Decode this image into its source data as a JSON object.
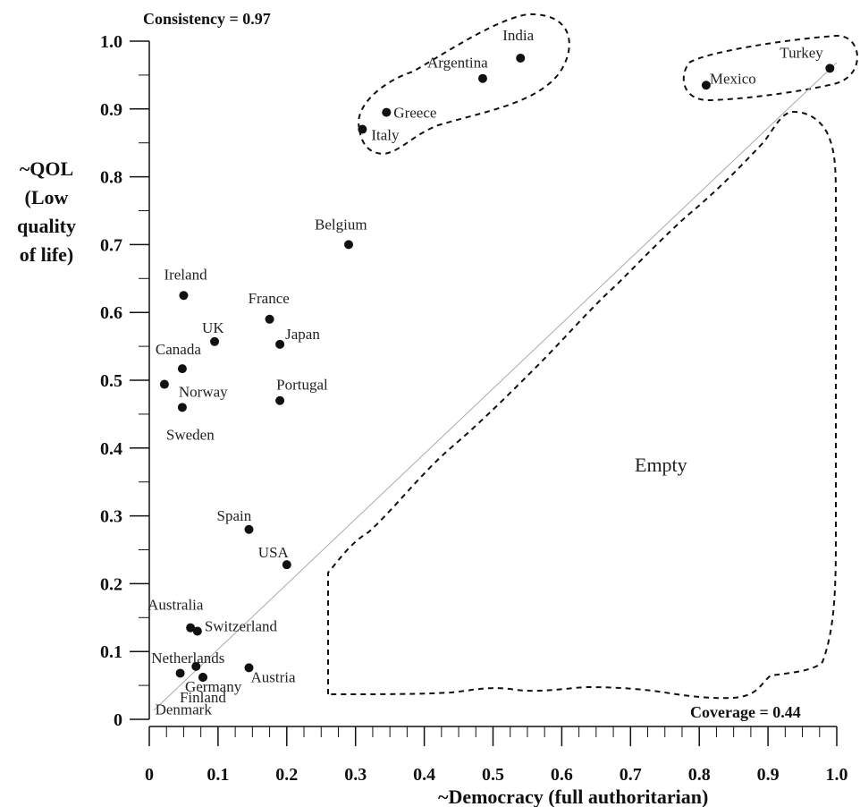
{
  "chart_data": {
    "type": "scatter",
    "xlabel": "~Democracy (full authoritarian)",
    "ylabel_lines": [
      "~QOL",
      "(Low",
      "quality",
      "of life)"
    ],
    "xlim": [
      0,
      1.0
    ],
    "ylim": [
      0,
      1.0
    ],
    "x_ticks": [
      "0",
      "0.1",
      "0.2",
      "0.3",
      "0.4",
      "0.5",
      "0.6",
      "0.7",
      "0.8",
      "0.9",
      "1.0"
    ],
    "y_ticks": [
      "0",
      "0.1",
      "0.2",
      "0.3",
      "0.4",
      "0.5",
      "0.6",
      "0.7",
      "0.8",
      "0.9",
      "1.0"
    ],
    "annotations": {
      "consistency": "Consistency = 0.97",
      "coverage": "Coverage = 0.44",
      "empty_region": "Empty"
    },
    "diagonal": [
      [
        0,
        0
      ],
      [
        1,
        1
      ]
    ],
    "points": [
      {
        "label": "India",
        "x": 0.54,
        "y": 0.975
      },
      {
        "label": "Argentina",
        "x": 0.485,
        "y": 0.945
      },
      {
        "label": "Greece",
        "x": 0.345,
        "y": 0.895
      },
      {
        "label": "Italy",
        "x": 0.31,
        "y": 0.87
      },
      {
        "label": "Turkey",
        "x": 0.99,
        "y": 0.96
      },
      {
        "label": "Mexico",
        "x": 0.81,
        "y": 0.935
      },
      {
        "label": "Belgium",
        "x": 0.29,
        "y": 0.7
      },
      {
        "label": "Ireland",
        "x": 0.05,
        "y": 0.625
      },
      {
        "label": "France",
        "x": 0.175,
        "y": 0.59
      },
      {
        "label": "UK",
        "x": 0.095,
        "y": 0.557
      },
      {
        "label": "Japan",
        "x": 0.19,
        "y": 0.553
      },
      {
        "label": "Canada",
        "x": 0.048,
        "y": 0.517
      },
      {
        "label": "Sweden",
        "x": 0.022,
        "y": 0.494
      },
      {
        "label": "Norway",
        "x": 0.048,
        "y": 0.46
      },
      {
        "label": "Portugal",
        "x": 0.19,
        "y": 0.47
      },
      {
        "label": "Spain",
        "x": 0.145,
        "y": 0.28
      },
      {
        "label": "USA",
        "x": 0.2,
        "y": 0.228
      },
      {
        "label": "Australia",
        "x": 0.06,
        "y": 0.135
      },
      {
        "label": "Switzerland",
        "x": 0.07,
        "y": 0.13
      },
      {
        "label": "Netherlands",
        "x": 0.068,
        "y": 0.078
      },
      {
        "label": "Austria",
        "x": 0.145,
        "y": 0.076
      },
      {
        "label": "Denmark",
        "x": 0.045,
        "y": 0.068
      },
      {
        "label": "Finland",
        "x": 0.078,
        "y": 0.062
      },
      {
        "label": "Germany",
        "x": 0.078,
        "y": 0.062
      }
    ],
    "grid": false,
    "legend": "none"
  }
}
